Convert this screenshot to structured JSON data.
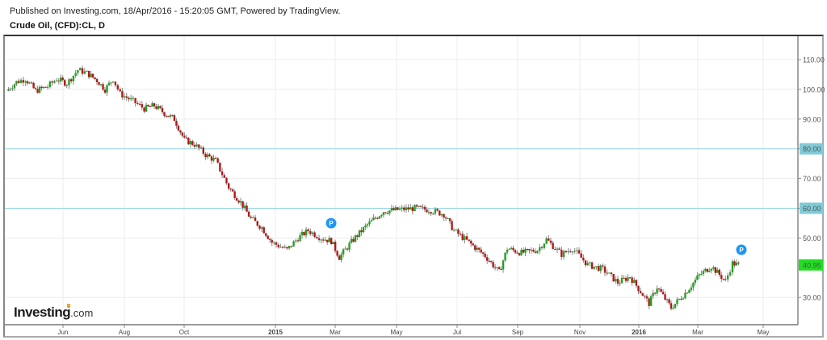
{
  "header": {
    "published": "Published on Investing.com, 18/Apr/2016 - 15:20:05 GMT, Powered by TradingView.",
    "title": "Crude Oil, (CFD):CL, D"
  },
  "logo": {
    "brand": "Investing",
    "suffix": ".com"
  },
  "colors": {
    "up": "#22a022",
    "down": "#b01818",
    "wick": "#888888",
    "hline": "#8fd3e0",
    "hline_label_bg": "#7fcbd8",
    "last_price_bg": "#22dd22",
    "grid": "#ececec",
    "marker": "#2196f3"
  },
  "chart_data": {
    "type": "candlestick",
    "title": "Crude Oil, (CFD):CL, D",
    "interval": "D",
    "xlabel": "",
    "ylabel": "",
    "ylim": [
      22,
      118
    ],
    "grid": true,
    "price_axis_ticks": [
      "110.00",
      "100.00",
      "90.00",
      "80.00",
      "70.00",
      "60.00",
      "50.00",
      "30.00"
    ],
    "time_axis_ticks": [
      {
        "label": "Jun",
        "bold": false
      },
      {
        "label": "Aug",
        "bold": false
      },
      {
        "label": "Oct",
        "bold": false
      },
      {
        "label": "2015",
        "bold": true
      },
      {
        "label": "Mar",
        "bold": false
      },
      {
        "label": "May",
        "bold": false
      },
      {
        "label": "Jul",
        "bold": false
      },
      {
        "label": "Sep",
        "bold": false
      },
      {
        "label": "Nov",
        "bold": false
      },
      {
        "label": "2016",
        "bold": true
      },
      {
        "label": "Mar",
        "bold": false
      },
      {
        "label": "May",
        "bold": false
      }
    ],
    "horizontal_lines": [
      {
        "price": 80.0,
        "label": "80.00"
      },
      {
        "price": 60.0,
        "label": "60.00"
      }
    ],
    "last_price": {
      "value": 40.95,
      "label": "40.95"
    },
    "markers": [
      {
        "label": "P",
        "date": "late Feb 2015",
        "price": 53.5
      },
      {
        "label": "P",
        "date": "mid Apr 2016",
        "price": 46.0
      }
    ],
    "series": [
      {
        "name": "Crude Oil close (approx)",
        "points": [
          {
            "date": "2014-04-21",
            "close": 99.5
          },
          {
            "date": "2014-05-01",
            "close": 102.5
          },
          {
            "date": "2014-05-10",
            "close": 103.5
          },
          {
            "date": "2014-05-20",
            "close": 99.5
          },
          {
            "date": "2014-06-01",
            "close": 101.0
          },
          {
            "date": "2014-06-10",
            "close": 103.5
          },
          {
            "date": "2014-06-20",
            "close": 102.0
          },
          {
            "date": "2014-07-01",
            "close": 106.5
          },
          {
            "date": "2014-07-10",
            "close": 105.5
          },
          {
            "date": "2014-07-20",
            "close": 103.0
          },
          {
            "date": "2014-07-28",
            "close": 100.0
          },
          {
            "date": "2014-08-05",
            "close": 103.5
          },
          {
            "date": "2014-08-12",
            "close": 98.5
          },
          {
            "date": "2014-08-25",
            "close": 96.0
          },
          {
            "date": "2014-09-05",
            "close": 93.5
          },
          {
            "date": "2014-09-15",
            "close": 94.5
          },
          {
            "date": "2014-09-25",
            "close": 92.0
          },
          {
            "date": "2014-10-05",
            "close": 90.0
          },
          {
            "date": "2014-10-15",
            "close": 83.0
          },
          {
            "date": "2014-10-25",
            "close": 81.5
          },
          {
            "date": "2014-11-05",
            "close": 78.0
          },
          {
            "date": "2014-11-15",
            "close": 76.0
          },
          {
            "date": "2014-11-28",
            "close": 67.0
          },
          {
            "date": "2014-12-10",
            "close": 62.0
          },
          {
            "date": "2014-12-20",
            "close": 56.5
          },
          {
            "date": "2014-12-31",
            "close": 53.5
          },
          {
            "date": "2015-01-10",
            "close": 48.5
          },
          {
            "date": "2015-01-25",
            "close": 46.0
          },
          {
            "date": "2015-02-05",
            "close": 50.0
          },
          {
            "date": "2015-02-15",
            "close": 52.5
          },
          {
            "date": "2015-02-28",
            "close": 50.0
          },
          {
            "date": "2015-03-10",
            "close": 49.0
          },
          {
            "date": "2015-03-18",
            "close": 43.5
          },
          {
            "date": "2015-04-01",
            "close": 49.5
          },
          {
            "date": "2015-04-15",
            "close": 54.5
          },
          {
            "date": "2015-05-01",
            "close": 59.0
          },
          {
            "date": "2015-05-15",
            "close": 59.5
          },
          {
            "date": "2015-06-01",
            "close": 60.0
          },
          {
            "date": "2015-06-15",
            "close": 59.5
          },
          {
            "date": "2015-06-30",
            "close": 58.0
          },
          {
            "date": "2015-07-10",
            "close": 52.5
          },
          {
            "date": "2015-07-25",
            "close": 48.5
          },
          {
            "date": "2015-08-10",
            "close": 44.0
          },
          {
            "date": "2015-08-24",
            "close": 38.5
          },
          {
            "date": "2015-09-01",
            "close": 46.5
          },
          {
            "date": "2015-09-15",
            "close": 45.0
          },
          {
            "date": "2015-10-01",
            "close": 46.0
          },
          {
            "date": "2015-10-10",
            "close": 49.5
          },
          {
            "date": "2015-10-25",
            "close": 44.5
          },
          {
            "date": "2015-11-05",
            "close": 46.5
          },
          {
            "date": "2015-11-20",
            "close": 41.0
          },
          {
            "date": "2015-12-05",
            "close": 39.5
          },
          {
            "date": "2015-12-20",
            "close": 35.0
          },
          {
            "date": "2016-01-01",
            "close": 37.0
          },
          {
            "date": "2016-01-20",
            "close": 28.0
          },
          {
            "date": "2016-01-28",
            "close": 33.5
          },
          {
            "date": "2016-02-11",
            "close": 26.5
          },
          {
            "date": "2016-02-25",
            "close": 31.5
          },
          {
            "date": "2016-03-10",
            "close": 37.5
          },
          {
            "date": "2016-03-22",
            "close": 40.5
          },
          {
            "date": "2016-04-05",
            "close": 35.5
          },
          {
            "date": "2016-04-12",
            "close": 41.5
          },
          {
            "date": "2016-04-18",
            "close": 40.95
          }
        ]
      }
    ]
  }
}
